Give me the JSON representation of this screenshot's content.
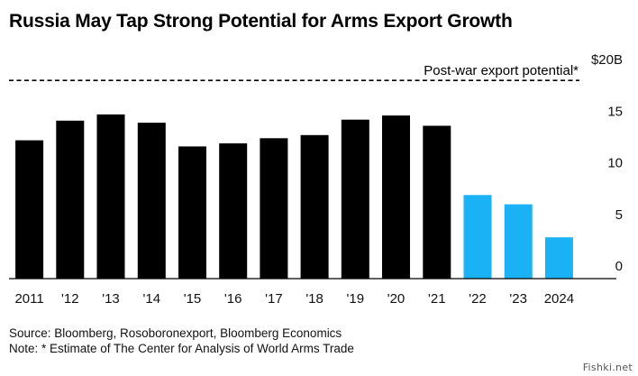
{
  "title": "Russia May Tap Strong Potential for Arms Export Growth",
  "source_note": "Source: Bloomberg, Rosoboronexport, Bloomberg Economics",
  "estimate_note": "Note: * Estimate of The Center for Analysis of World Arms Trade",
  "watermark": "Fishki.net",
  "colors": {
    "historical": "#000000",
    "recent": "#1ab2f5",
    "axis": "#000000"
  },
  "chart_data": {
    "type": "bar",
    "title": "Russia May Tap Strong Potential for Arms Export Growth",
    "categories": [
      "2011",
      "'12",
      "'13",
      "'14",
      "'15",
      "'16",
      "'17",
      "'18",
      "'19",
      "'20",
      "'21",
      "'22",
      "'23",
      "2024"
    ],
    "series": [
      {
        "values": [
          13.4,
          15.3,
          15.9,
          15.1,
          12.8,
          13.1,
          13.6,
          13.9,
          15.4,
          15.8,
          14.8,
          8.1,
          7.2,
          4.0
        ]
      }
    ],
    "highlight_from_index": 11,
    "y_ticks": [
      0,
      5,
      10,
      15,
      20
    ],
    "y_tick_labels": [
      "0",
      "5",
      "10",
      "15",
      "$20B"
    ],
    "ylim": [
      0,
      20
    ],
    "reference_line": {
      "value": 19.2,
      "label": "Post-war export potential*"
    },
    "y_axis_side": "right",
    "grid": false,
    "legend": "none"
  }
}
